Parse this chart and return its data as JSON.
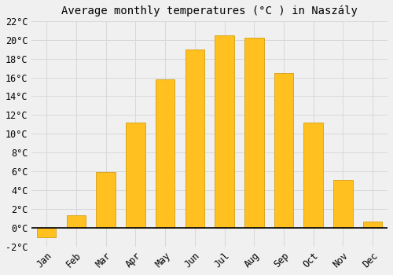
{
  "months": [
    "Jan",
    "Feb",
    "Mar",
    "Apr",
    "May",
    "Jun",
    "Jul",
    "Aug",
    "Sep",
    "Oct",
    "Nov",
    "Dec"
  ],
  "temperatures": [
    -1.0,
    1.3,
    5.9,
    11.2,
    15.8,
    19.0,
    20.5,
    20.2,
    16.5,
    11.2,
    5.1,
    0.7
  ],
  "bar_color": "#FFC020",
  "bar_edge_color": "#D4A010",
  "title": "Average monthly temperatures (°C ) in Naszály",
  "ylim_min": -2,
  "ylim_max": 22,
  "ytick_step": 2,
  "background_color": "#f0f0f0",
  "grid_color": "#d8d8d8",
  "title_fontsize": 10,
  "tick_fontsize": 8.5,
  "bar_width": 0.65
}
